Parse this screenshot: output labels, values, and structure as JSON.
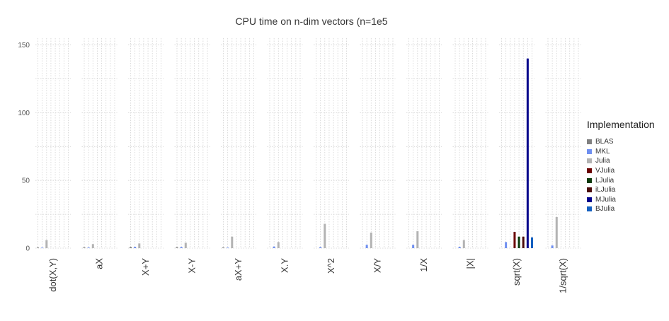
{
  "chart_data": {
    "type": "bar",
    "title": "CPU time on n-dim vectors (n=1e5",
    "xlabel": "",
    "ylabel": "",
    "ylim": [
      0,
      155
    ],
    "yticks": [
      0,
      50,
      100,
      150
    ],
    "grid": true,
    "legend_title": "Implementation",
    "legend_position": "right",
    "categories": [
      "dot(X,Y)",
      "aX",
      "X+Y",
      "X-Y",
      "aX+Y",
      "X.Y",
      "X^2",
      "X/Y",
      "1/X",
      "|X|",
      "sqrt(X)",
      "1/sqrt(X)"
    ],
    "series": [
      {
        "name": "BLAS",
        "color": "#808080",
        "values": [
          0.5,
          0.6,
          0.9,
          0.7,
          0.5,
          null,
          null,
          null,
          null,
          null,
          null,
          null
        ]
      },
      {
        "name": "MKL",
        "color": "#6f8ff0",
        "values": [
          0.4,
          0.5,
          1.0,
          0.9,
          0.4,
          1.2,
          0.8,
          2.5,
          2.5,
          1.0,
          4.5,
          2.0
        ]
      },
      {
        "name": "Julia",
        "color": "#b3b3b3",
        "values": [
          6.0,
          3.0,
          3.5,
          4.0,
          8.5,
          4.5,
          18.0,
          11.5,
          12.5,
          6.0,
          0,
          23.0
        ]
      },
      {
        "name": "VJulia",
        "color": "#6b0000",
        "values": [
          0,
          0,
          0,
          0,
          0,
          0,
          0,
          0,
          0,
          0,
          12.0,
          0
        ]
      },
      {
        "name": "LJulia",
        "color": "#0b3a0b",
        "values": [
          0,
          0,
          0,
          0,
          0,
          0,
          0,
          0,
          0,
          0,
          8.5,
          0
        ]
      },
      {
        "name": "iLJulia",
        "color": "#4a0a0a",
        "values": [
          0,
          0,
          0,
          0,
          0,
          0,
          0,
          0,
          0,
          0,
          8.5,
          0
        ]
      },
      {
        "name": "MJulia",
        "color": "#00008b",
        "values": [
          0,
          0,
          0,
          0,
          0,
          0,
          0,
          0,
          0,
          0,
          140.0,
          0
        ]
      },
      {
        "name": "BJulia",
        "color": "#1460c0",
        "values": [
          0,
          0,
          0,
          0,
          0,
          0,
          0,
          0,
          0,
          0,
          8.0,
          0
        ]
      }
    ]
  }
}
